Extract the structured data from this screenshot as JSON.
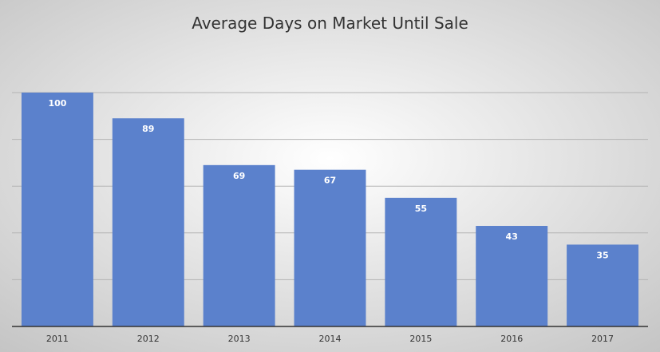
{
  "chart_data": {
    "type": "bar",
    "title": "Average Days on Market Until Sale",
    "categories": [
      "2011",
      "2012",
      "2013",
      "2014",
      "2015",
      "2016",
      "2017"
    ],
    "values": [
      100,
      89,
      69,
      67,
      55,
      43,
      35
    ],
    "xlabel": "",
    "ylabel": "",
    "ylim": [
      0,
      100
    ],
    "y_gridline_step": 20,
    "grid": true,
    "legend": "none",
    "y_tick_labels_shown": false,
    "data_labels_shown": true
  },
  "colors": {
    "bar": "#5b81cc",
    "gridline": "#b3b3b3",
    "axis": "#333333",
    "title": "#333333",
    "data_label": "#ffffff",
    "background_light": "#ffffff",
    "background_dark": "#c4c4c4"
  }
}
